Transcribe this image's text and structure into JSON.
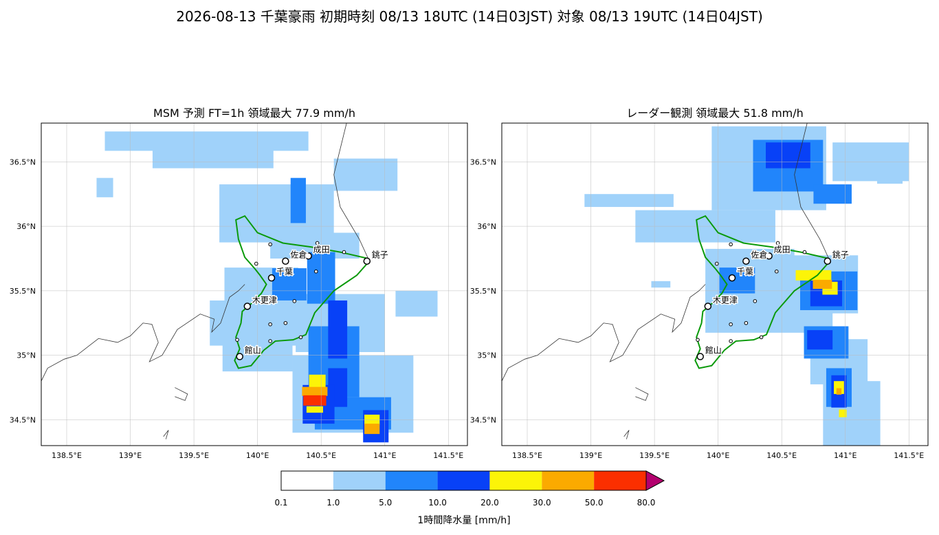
{
  "suptitle": "2026-08-13 千葉豪雨   初期時刻 08/13 18UTC (14日03JST)   対象 08/13 19UTC (14日04JST)",
  "chart_data": [
    {
      "type": "heatmap",
      "title": "MSM 予測  FT=1h   領域最大 77.9 mm/h",
      "xlim": [
        138.3,
        141.65
      ],
      "ylim": [
        34.3,
        36.8
      ],
      "x_ticks": [
        {
          "value": 138.5,
          "label": "138.5°E"
        },
        {
          "value": 139.0,
          "label": "139°E"
        },
        {
          "value": 139.5,
          "label": "139.5°E"
        },
        {
          "value": 140.0,
          "label": "140°E"
        },
        {
          "value": 140.5,
          "label": "140.5°E"
        },
        {
          "value": 141.0,
          "label": "141°E"
        },
        {
          "value": 141.5,
          "label": "141.5°E"
        }
      ],
      "y_ticks": [
        {
          "value": 34.5,
          "label": "34.5°N"
        },
        {
          "value": 35.0,
          "label": "35°N"
        },
        {
          "value": 35.5,
          "label": "35.5°N"
        },
        {
          "value": 36.0,
          "label": "36°N"
        },
        {
          "value": 36.5,
          "label": "36.5°N"
        }
      ],
      "grid": true,
      "regions": [
        {
          "level": 1,
          "lon": 139.6,
          "lat": 36.66,
          "w": 1.6,
          "h": 0.15
        },
        {
          "level": 1,
          "lon": 139.65,
          "lat": 36.52,
          "w": 0.95,
          "h": 0.14
        },
        {
          "level": 1,
          "lon": 140.85,
          "lat": 36.4,
          "w": 0.5,
          "h": 0.25
        },
        {
          "level": 1,
          "lon": 138.8,
          "lat": 36.3,
          "w": 0.13,
          "h": 0.15
        },
        {
          "level": 1,
          "lon": 140.15,
          "lat": 36.1,
          "w": 0.9,
          "h": 0.45
        },
        {
          "level": 1,
          "lon": 140.45,
          "lat": 35.85,
          "w": 0.7,
          "h": 0.2
        },
        {
          "level": 1,
          "lon": 140.03,
          "lat": 35.55,
          "w": 0.58,
          "h": 0.26
        },
        {
          "level": 1,
          "lon": 140.0,
          "lat": 35.25,
          "w": 0.75,
          "h": 0.35
        },
        {
          "level": 1,
          "lon": 140.0,
          "lat": 35.0,
          "w": 0.55,
          "h": 0.25
        },
        {
          "level": 1,
          "lon": 140.65,
          "lat": 35.25,
          "w": 0.7,
          "h": 0.45
        },
        {
          "level": 1,
          "lon": 141.25,
          "lat": 35.4,
          "w": 0.33,
          "h": 0.2
        },
        {
          "level": 1,
          "lon": 140.75,
          "lat": 34.7,
          "w": 0.95,
          "h": 0.6
        },
        {
          "level": 2,
          "lon": 140.32,
          "lat": 36.2,
          "w": 0.12,
          "h": 0.35
        },
        {
          "level": 2,
          "lon": 140.25,
          "lat": 35.55,
          "w": 0.27,
          "h": 0.25
        },
        {
          "level": 2,
          "lon": 140.5,
          "lat": 35.6,
          "w": 0.22,
          "h": 0.4
        },
        {
          "level": 2,
          "lon": 140.6,
          "lat": 34.95,
          "w": 0.4,
          "h": 0.55
        },
        {
          "level": 2,
          "lon": 140.75,
          "lat": 34.55,
          "w": 0.6,
          "h": 0.25
        },
        {
          "level": 3,
          "lon": 140.63,
          "lat": 35.2,
          "w": 0.15,
          "h": 0.45
        },
        {
          "level": 3,
          "lon": 140.63,
          "lat": 34.75,
          "w": 0.15,
          "h": 0.3
        },
        {
          "level": 3,
          "lon": 140.48,
          "lat": 34.62,
          "w": 0.25,
          "h": 0.3
        },
        {
          "level": 3,
          "lon": 140.93,
          "lat": 34.45,
          "w": 0.2,
          "h": 0.25
        },
        {
          "level": 4,
          "lon": 140.47,
          "lat": 34.8,
          "w": 0.13,
          "h": 0.1
        },
        {
          "level": 5,
          "lon": 140.45,
          "lat": 34.72,
          "w": 0.2,
          "h": 0.07
        },
        {
          "level": 6,
          "lon": 140.45,
          "lat": 34.65,
          "w": 0.18,
          "h": 0.08
        },
        {
          "level": 4,
          "lon": 140.45,
          "lat": 34.58,
          "w": 0.13,
          "h": 0.05
        },
        {
          "level": 4,
          "lon": 140.9,
          "lat": 34.5,
          "w": 0.12,
          "h": 0.08
        },
        {
          "level": 5,
          "lon": 140.9,
          "lat": 34.43,
          "w": 0.12,
          "h": 0.08
        }
      ]
    },
    {
      "type": "heatmap",
      "title": "レーダー観測  領域最大 51.8 mm/h",
      "xlim": [
        138.3,
        141.65
      ],
      "ylim": [
        34.3,
        36.8
      ],
      "x_ticks": [
        {
          "value": 138.5,
          "label": "138.5°E"
        },
        {
          "value": 139.0,
          "label": "139°E"
        },
        {
          "value": 139.5,
          "label": "139.5°E"
        },
        {
          "value": 140.0,
          "label": "140°E"
        },
        {
          "value": 140.5,
          "label": "140.5°E"
        },
        {
          "value": 141.0,
          "label": "141°E"
        },
        {
          "value": 141.5,
          "label": "141.5°E"
        }
      ],
      "y_ticks": [
        {
          "value": 34.5,
          "label": "34.5°N"
        },
        {
          "value": 35.0,
          "label": "35°N"
        },
        {
          "value": 35.5,
          "label": "35.5°N"
        },
        {
          "value": 36.0,
          "label": "36°N"
        },
        {
          "value": 36.5,
          "label": "36.5°N"
        }
      ],
      "grid": true,
      "regions": [
        {
          "level": 1,
          "lon": 140.4,
          "lat": 36.45,
          "w": 0.9,
          "h": 0.65
        },
        {
          "level": 1,
          "lon": 141.2,
          "lat": 36.5,
          "w": 0.6,
          "h": 0.3
        },
        {
          "level": 1,
          "lon": 139.9,
          "lat": 36.0,
          "w": 1.1,
          "h": 0.25
        },
        {
          "level": 1,
          "lon": 139.3,
          "lat": 36.2,
          "w": 0.7,
          "h": 0.1
        },
        {
          "level": 1,
          "lon": 140.25,
          "lat": 35.6,
          "w": 0.7,
          "h": 0.45
        },
        {
          "level": 1,
          "lon": 140.7,
          "lat": 35.55,
          "w": 0.8,
          "h": 0.45
        },
        {
          "level": 1,
          "lon": 140.4,
          "lat": 35.35,
          "w": 1.0,
          "h": 0.35
        },
        {
          "level": 1,
          "lon": 140.95,
          "lat": 34.95,
          "w": 0.45,
          "h": 0.35
        },
        {
          "level": 1,
          "lon": 141.05,
          "lat": 34.55,
          "w": 0.45,
          "h": 0.5
        },
        {
          "level": 1,
          "lon": 141.35,
          "lat": 36.37,
          "w": 0.2,
          "h": 0.08
        },
        {
          "level": 1,
          "lon": 139.55,
          "lat": 35.55,
          "w": 0.15,
          "h": 0.05
        },
        {
          "level": 2,
          "lon": 140.55,
          "lat": 36.47,
          "w": 0.55,
          "h": 0.4
        },
        {
          "level": 2,
          "lon": 140.9,
          "lat": 36.25,
          "w": 0.3,
          "h": 0.15
        },
        {
          "level": 2,
          "lon": 140.15,
          "lat": 35.58,
          "w": 0.28,
          "h": 0.2
        },
        {
          "level": 2,
          "lon": 140.87,
          "lat": 35.5,
          "w": 0.45,
          "h": 0.3
        },
        {
          "level": 2,
          "lon": 140.85,
          "lat": 35.1,
          "w": 0.35,
          "h": 0.25
        },
        {
          "level": 2,
          "lon": 140.95,
          "lat": 34.75,
          "w": 0.2,
          "h": 0.3
        },
        {
          "level": 3,
          "lon": 140.55,
          "lat": 36.55,
          "w": 0.35,
          "h": 0.2
        },
        {
          "level": 3,
          "lon": 140.85,
          "lat": 35.48,
          "w": 0.25,
          "h": 0.2
        },
        {
          "level": 3,
          "lon": 140.8,
          "lat": 35.12,
          "w": 0.2,
          "h": 0.15
        },
        {
          "level": 3,
          "lon": 140.95,
          "lat": 34.72,
          "w": 0.12,
          "h": 0.25
        },
        {
          "level": 4,
          "lon": 140.75,
          "lat": 35.62,
          "w": 0.28,
          "h": 0.08
        },
        {
          "level": 4,
          "lon": 140.88,
          "lat": 35.52,
          "w": 0.12,
          "h": 0.1
        },
        {
          "level": 4,
          "lon": 140.95,
          "lat": 34.75,
          "w": 0.08,
          "h": 0.1
        },
        {
          "level": 4,
          "lon": 140.98,
          "lat": 34.55,
          "w": 0.06,
          "h": 0.06
        },
        {
          "level": 5,
          "lon": 140.82,
          "lat": 35.55,
          "w": 0.15,
          "h": 0.07
        },
        {
          "level": 5,
          "lon": 140.95,
          "lat": 34.72,
          "w": 0.04,
          "h": 0.05
        }
      ]
    }
  ],
  "cities": [
    {
      "name": "銚子",
      "lon": 140.86,
      "lat": 35.73
    },
    {
      "name": "成田",
      "lon": 140.4,
      "lat": 35.77
    },
    {
      "name": "佐倉",
      "lon": 140.22,
      "lat": 35.73
    },
    {
      "name": "千葉",
      "lon": 140.11,
      "lat": 35.6
    },
    {
      "name": "木更津",
      "lon": 139.92,
      "lat": 35.38
    },
    {
      "name": "館山",
      "lon": 139.86,
      "lat": 34.99
    }
  ],
  "small_stations": [
    {
      "lon": 140.1,
      "lat": 35.86
    },
    {
      "lon": 140.47,
      "lat": 35.87
    },
    {
      "lon": 140.68,
      "lat": 35.8
    },
    {
      "lon": 139.99,
      "lat": 35.71
    },
    {
      "lon": 140.46,
      "lat": 35.65
    },
    {
      "lon": 140.29,
      "lat": 35.42
    },
    {
      "lon": 140.1,
      "lat": 35.24
    },
    {
      "lon": 140.22,
      "lat": 35.25
    },
    {
      "lon": 140.34,
      "lat": 35.14
    },
    {
      "lon": 139.84,
      "lat": 35.12
    },
    {
      "lon": 140.1,
      "lat": 35.11
    }
  ],
  "legend": {
    "label": "1時間降水量 [mm/h]",
    "ticks": [
      "0.1",
      "1.0",
      "5.0",
      "10.0",
      "20.0",
      "30.0",
      "50.0",
      "80.0"
    ],
    "colors": [
      "#ffffff",
      "#a0d2fa",
      "#2185fb",
      "#0841f7",
      "#fcf408",
      "#fbaa00",
      "#fb2f00"
    ],
    "over_color": "#b3006e"
  }
}
